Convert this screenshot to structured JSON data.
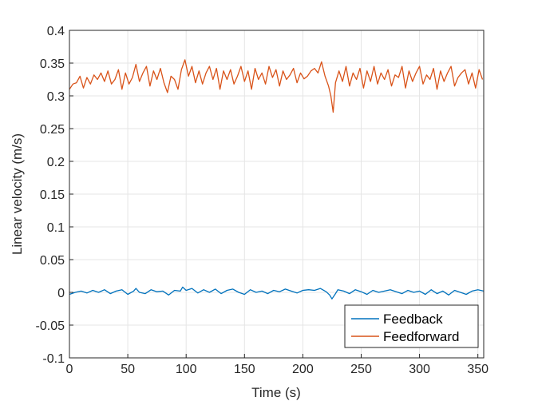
{
  "chart_data": {
    "type": "line",
    "title": "",
    "xlabel": "Time (s)",
    "ylabel": "Linear velocity (m/s)",
    "xlim": [
      0,
      355
    ],
    "ylim": [
      -0.1,
      0.4
    ],
    "xticks": [
      0,
      50,
      100,
      150,
      200,
      250,
      300,
      350
    ],
    "xtick_labels": [
      "0",
      "50",
      "100",
      "150",
      "200",
      "250",
      "300",
      "350"
    ],
    "yticks": [
      -0.1,
      -0.05,
      0,
      0.05,
      0.1,
      0.15,
      0.2,
      0.25,
      0.3,
      0.35,
      0.4
    ],
    "ytick_labels": [
      "-0.1",
      "-0.05",
      "0",
      "0.05",
      "0.1",
      "0.15",
      "0.2",
      "0.25",
      "0.3",
      "0.35",
      "0.4"
    ],
    "grid": true,
    "legend_position": "bottom-right",
    "series": [
      {
        "name": "Feedback",
        "color": "#0072BD",
        "x": [
          0,
          5,
          10,
          15,
          20,
          25,
          30,
          35,
          40,
          45,
          50,
          55,
          57,
          60,
          65,
          70,
          75,
          80,
          85,
          90,
          95,
          97,
          100,
          105,
          110,
          115,
          120,
          125,
          130,
          135,
          140,
          145,
          150,
          155,
          160,
          165,
          170,
          175,
          180,
          185,
          190,
          195,
          200,
          205,
          210,
          215,
          220,
          223,
          225,
          228,
          230,
          235,
          240,
          245,
          250,
          255,
          260,
          265,
          270,
          275,
          280,
          285,
          290,
          295,
          300,
          305,
          310,
          315,
          320,
          325,
          330,
          335,
          340,
          345,
          350,
          355
        ],
        "y": [
          -0.003,
          0.0,
          0.002,
          -0.001,
          0.003,
          0.0,
          0.004,
          -0.002,
          0.002,
          0.004,
          -0.003,
          0.002,
          0.006,
          0.0,
          -0.002,
          0.004,
          0.001,
          0.002,
          -0.004,
          0.003,
          0.002,
          0.008,
          0.003,
          0.006,
          -0.001,
          0.004,
          0.0,
          0.005,
          -0.002,
          0.003,
          0.005,
          0.0,
          -0.003,
          0.004,
          0.0,
          0.002,
          -0.002,
          0.003,
          0.001,
          0.005,
          0.002,
          -0.001,
          0.003,
          0.004,
          0.003,
          0.006,
          0.001,
          -0.004,
          -0.01,
          -0.002,
          0.004,
          0.002,
          -0.002,
          0.004,
          0.001,
          -0.003,
          0.003,
          0.0,
          0.002,
          0.004,
          0.001,
          -0.002,
          0.003,
          0.0,
          0.002,
          -0.003,
          0.004,
          -0.002,
          0.002,
          -0.004,
          0.003,
          0.0,
          -0.003,
          0.002,
          0.004,
          0.002
        ]
      },
      {
        "name": "Feedforward",
        "color": "#D95319",
        "x": [
          0,
          3,
          6,
          9,
          12,
          15,
          18,
          21,
          24,
          27,
          30,
          33,
          36,
          39,
          42,
          45,
          48,
          51,
          54,
          57,
          60,
          63,
          66,
          69,
          72,
          75,
          78,
          81,
          84,
          87,
          90,
          93,
          96,
          99,
          102,
          105,
          108,
          111,
          114,
          117,
          120,
          123,
          126,
          129,
          132,
          135,
          138,
          141,
          144,
          147,
          150,
          153,
          156,
          159,
          162,
          165,
          168,
          171,
          174,
          177,
          180,
          183,
          186,
          189,
          192,
          195,
          198,
          201,
          204,
          207,
          210,
          213,
          216,
          219,
          222,
          224,
          226,
          228,
          231,
          234,
          237,
          240,
          243,
          246,
          249,
          252,
          255,
          258,
          261,
          264,
          267,
          270,
          273,
          276,
          279,
          282,
          285,
          288,
          291,
          294,
          297,
          300,
          303,
          306,
          309,
          312,
          315,
          318,
          321,
          324,
          327,
          330,
          333,
          336,
          339,
          342,
          345,
          348,
          351,
          354
        ],
        "y": [
          0.31,
          0.318,
          0.32,
          0.33,
          0.312,
          0.328,
          0.318,
          0.332,
          0.325,
          0.335,
          0.322,
          0.338,
          0.318,
          0.325,
          0.34,
          0.31,
          0.335,
          0.318,
          0.328,
          0.348,
          0.322,
          0.335,
          0.345,
          0.315,
          0.338,
          0.325,
          0.342,
          0.32,
          0.305,
          0.33,
          0.325,
          0.31,
          0.34,
          0.355,
          0.33,
          0.345,
          0.32,
          0.338,
          0.318,
          0.335,
          0.345,
          0.325,
          0.342,
          0.31,
          0.338,
          0.325,
          0.34,
          0.318,
          0.33,
          0.345,
          0.322,
          0.338,
          0.31,
          0.342,
          0.325,
          0.335,
          0.318,
          0.345,
          0.328,
          0.34,
          0.315,
          0.338,
          0.325,
          0.332,
          0.342,
          0.32,
          0.335,
          0.326,
          0.33,
          0.338,
          0.342,
          0.335,
          0.352,
          0.33,
          0.315,
          0.3,
          0.275,
          0.32,
          0.338,
          0.322,
          0.345,
          0.315,
          0.335,
          0.325,
          0.342,
          0.312,
          0.338,
          0.322,
          0.345,
          0.318,
          0.335,
          0.325,
          0.34,
          0.315,
          0.332,
          0.328,
          0.345,
          0.312,
          0.338,
          0.322,
          0.335,
          0.345,
          0.318,
          0.332,
          0.325,
          0.342,
          0.31,
          0.338,
          0.322,
          0.335,
          0.345,
          0.315,
          0.328,
          0.335,
          0.34,
          0.318,
          0.335,
          0.312,
          0.34,
          0.325
        ]
      }
    ]
  }
}
